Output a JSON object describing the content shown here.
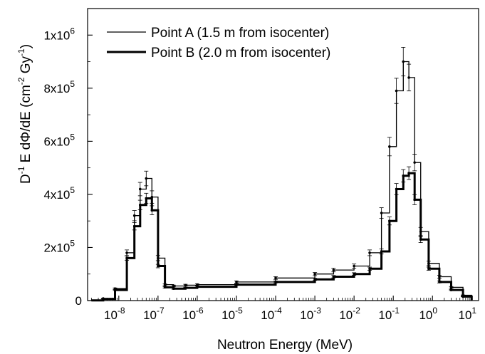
{
  "chart_data": {
    "type": "line",
    "xlabel": "Neutron Energy (MeV)",
    "ylabel_parts": [
      "D",
      "-1",
      "  E dΦ/dE  (cm",
      "-2",
      " Gy",
      "-1",
      ")"
    ],
    "x_scale": "log",
    "xlim": [
      1.6e-09,
      15
    ],
    "ylim": [
      0,
      1100000
    ],
    "legend_position": "top-left",
    "x_ticks": [
      {
        "base": "10",
        "exp": "-8",
        "value": 1e-08
      },
      {
        "base": "10",
        "exp": "-7",
        "value": 1e-07
      },
      {
        "base": "10",
        "exp": "-6",
        "value": 1e-06
      },
      {
        "base": "10",
        "exp": "-5",
        "value": 1e-05
      },
      {
        "base": "10",
        "exp": "-4",
        "value": 0.0001
      },
      {
        "base": "10",
        "exp": "-3",
        "value": 0.001
      },
      {
        "base": "10",
        "exp": "-2",
        "value": 0.01
      },
      {
        "base": "10",
        "exp": "-1",
        "value": 0.1
      },
      {
        "base": "10",
        "exp": "0",
        "value": 1
      },
      {
        "base": "10",
        "exp": "1",
        "value": 10
      }
    ],
    "y_ticks": [
      {
        "base": "0",
        "exp": "",
        "value": 0
      },
      {
        "base": "2x10",
        "exp": "5",
        "value": 200000
      },
      {
        "base": "4x10",
        "exp": "5",
        "value": 400000
      },
      {
        "base": "6x10",
        "exp": "5",
        "value": 600000
      },
      {
        "base": "8x10",
        "exp": "5",
        "value": 800000
      },
      {
        "base": "1x10",
        "exp": "6",
        "value": 1000000
      }
    ],
    "series": [
      {
        "name": "Point A (1.5 m from isocenter)",
        "stroke_width": 1.3,
        "error_frac": 0.06,
        "x": [
          2e-09,
          4e-09,
          8e-09,
          1.6e-08,
          2.5e-08,
          3.5e-08,
          5e-08,
          7e-08,
          1e-07,
          1.5e-07,
          2.5e-07,
          5e-07,
          1e-06,
          1e-05,
          0.0001,
          0.001,
          0.003,
          0.01,
          0.025,
          0.05,
          0.08,
          0.12,
          0.18,
          0.25,
          0.35,
          0.5,
          0.8,
          1.5,
          3,
          6,
          10
        ],
        "y": [
          1000,
          8000,
          45000,
          180000,
          320000,
          420000,
          460000,
          390000,
          160000,
          60000,
          55000,
          58000,
          60000,
          70000,
          85000,
          100000,
          115000,
          130000,
          180000,
          330000,
          580000,
          790000,
          900000,
          840000,
          520000,
          260000,
          140000,
          90000,
          50000,
          20000,
          2000
        ]
      },
      {
        "name": "Point B (2.0 m from isocenter)",
        "stroke_width": 3.0,
        "error_frac": 0.05,
        "x": [
          2e-09,
          4e-09,
          8e-09,
          1.6e-08,
          2.5e-08,
          3.5e-08,
          5e-08,
          7e-08,
          1e-07,
          1.5e-07,
          2.5e-07,
          5e-07,
          1e-06,
          1e-05,
          0.0001,
          0.001,
          0.003,
          0.01,
          0.025,
          0.05,
          0.08,
          0.12,
          0.18,
          0.25,
          0.35,
          0.5,
          0.8,
          1.5,
          3,
          6,
          10
        ],
        "y": [
          800,
          6000,
          40000,
          160000,
          280000,
          360000,
          385000,
          340000,
          130000,
          50000,
          45000,
          48000,
          52000,
          60000,
          70000,
          80000,
          90000,
          100000,
          120000,
          185000,
          300000,
          420000,
          470000,
          480000,
          380000,
          230000,
          120000,
          70000,
          40000,
          15000,
          1500
        ]
      }
    ]
  }
}
